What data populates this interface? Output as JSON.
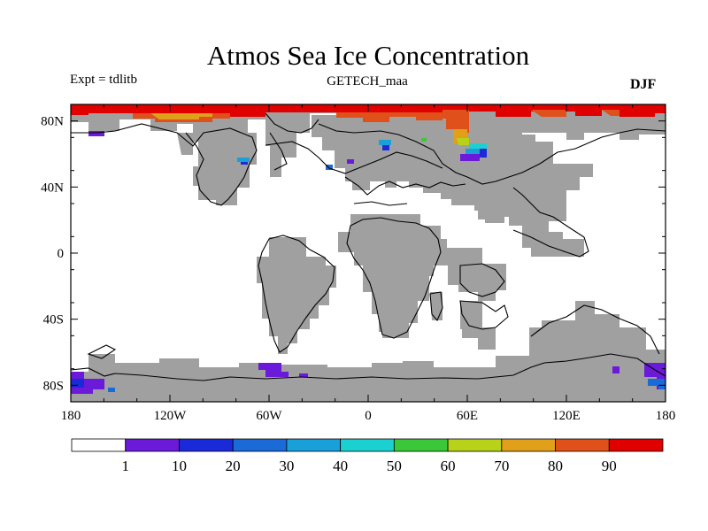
{
  "title": "Atmos Sea Ice Concentration",
  "expt_label": "Expt = tdlitb",
  "subtitle": "GETECH_maa",
  "season": "DJF",
  "colors": {
    "land": "#a0a0a0",
    "coast": "#000000",
    "ocean": "#ffffff",
    "ice_ramp": [
      "#ffffff",
      "#6a1ad8",
      "#1a2ad8",
      "#1a6ad8",
      "#1aa0d8",
      "#1ad0d0",
      "#3ac83a",
      "#b8d21a",
      "#e0a01a",
      "#e0501a",
      "#e00000"
    ]
  },
  "map": {
    "projection": "cylindrical-equidistant",
    "lon_range": [
      -180,
      180
    ],
    "lat_range": [
      -90,
      90
    ],
    "x_ticks": [
      {
        "label": "180",
        "lon": -180
      },
      {
        "label": "120W",
        "lon": -120
      },
      {
        "label": "60W",
        "lon": -60
      },
      {
        "label": "0",
        "lon": 0
      },
      {
        "label": "60E",
        "lon": 60
      },
      {
        "label": "120E",
        "lon": 120
      },
      {
        "label": "180",
        "lon": 180
      }
    ],
    "y_ticks": [
      {
        "label": "80N",
        "lat": 80
      },
      {
        "label": "40N",
        "lat": 40
      },
      {
        "label": "0",
        "lat": 0
      },
      {
        "label": "40S",
        "lat": -40
      },
      {
        "label": "80S",
        "lat": -80
      }
    ]
  },
  "colorbar": {
    "levels": [
      1,
      10,
      20,
      30,
      40,
      50,
      60,
      70,
      80,
      90
    ],
    "labels": [
      "1",
      "10",
      "20",
      "30",
      "40",
      "50",
      "60",
      "70",
      "80",
      "90"
    ]
  }
}
